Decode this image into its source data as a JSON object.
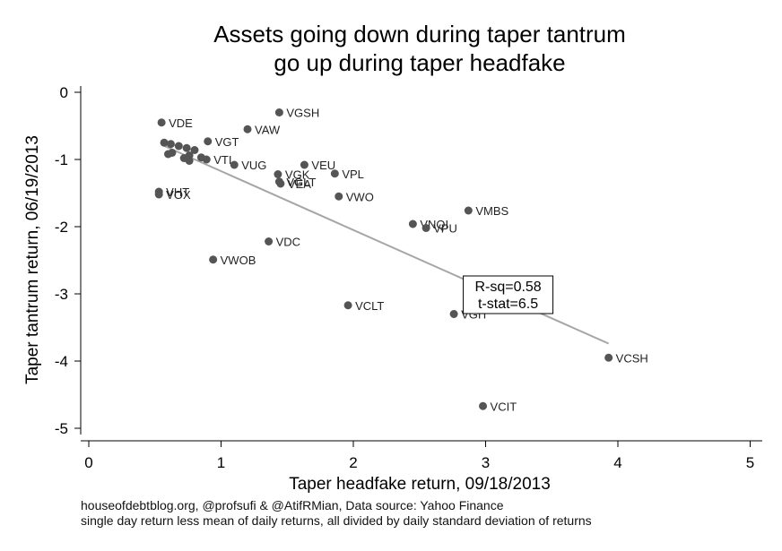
{
  "chart_data": {
    "type": "scatter",
    "title": [
      "Assets going down during taper tantrum",
      "go up during taper headfake"
    ],
    "xlabel": "Taper headfake return, 09/18/2013",
    "ylabel": "Taper tantrum return, 06/19/2013",
    "xlim": [
      0,
      5
    ],
    "ylim": [
      -5,
      0
    ],
    "xticks": [
      "0",
      "1",
      "2",
      "3",
      "4",
      "5"
    ],
    "yticks": [
      "0",
      "-1",
      "-2",
      "-3",
      "-4",
      "-5"
    ],
    "grid": false,
    "marker_color": "#555555",
    "fit_line_color": "#a6a6a6",
    "points": [
      {
        "label": "VDE",
        "x": 0.55,
        "y": -0.45
      },
      {
        "label": "VGSH",
        "x": 1.44,
        "y": -0.3
      },
      {
        "label": "VAW",
        "x": 1.2,
        "y": -0.55
      },
      {
        "label": "VGT",
        "x": 0.9,
        "y": -0.73
      },
      {
        "label": "",
        "x": 0.57,
        "y": -0.75
      },
      {
        "label": "",
        "x": 0.62,
        "y": -0.77
      },
      {
        "label": "",
        "x": 0.68,
        "y": -0.8
      },
      {
        "label": "",
        "x": 0.74,
        "y": -0.83
      },
      {
        "label": "",
        "x": 0.8,
        "y": -0.86
      },
      {
        "label": "",
        "x": 0.63,
        "y": -0.9
      },
      {
        "label": "",
        "x": 0.76,
        "y": -0.94
      },
      {
        "label": "",
        "x": 0.6,
        "y": -0.92
      },
      {
        "label": "",
        "x": 0.72,
        "y": -0.98
      },
      {
        "label": "",
        "x": 0.85,
        "y": -0.97
      },
      {
        "label": "VTI",
        "x": 0.89,
        "y": -1.0
      },
      {
        "label": "",
        "x": 0.76,
        "y": -1.02
      },
      {
        "label": "VUG",
        "x": 1.1,
        "y": -1.08
      },
      {
        "label": "VEU",
        "x": 1.63,
        "y": -1.08
      },
      {
        "label": "VPL",
        "x": 1.86,
        "y": -1.21
      },
      {
        "label": "VGK",
        "x": 1.43,
        "y": -1.22
      },
      {
        "label": "VGLT",
        "x": 1.44,
        "y": -1.33
      },
      {
        "label": "VEA",
        "x": 1.45,
        "y": -1.36
      },
      {
        "label": "VHT",
        "x": 0.53,
        "y": -1.48
      },
      {
        "label": "VOX",
        "x": 0.53,
        "y": -1.52
      },
      {
        "label": "VWO",
        "x": 1.89,
        "y": -1.55
      },
      {
        "label": "VMBS",
        "x": 2.87,
        "y": -1.76
      },
      {
        "label": "VNQI",
        "x": 2.45,
        "y": -1.96
      },
      {
        "label": "VPU",
        "x": 2.55,
        "y": -2.02
      },
      {
        "label": "VDC",
        "x": 1.36,
        "y": -2.22
      },
      {
        "label": "VWOB",
        "x": 0.94,
        "y": -2.49
      },
      {
        "label": "VCLT",
        "x": 1.96,
        "y": -3.17
      },
      {
        "label": "VGIT",
        "x": 2.76,
        "y": -3.3
      },
      {
        "label": "VCSH",
        "x": 3.93,
        "y": -3.95
      },
      {
        "label": "VCIT",
        "x": 2.98,
        "y": -4.67
      }
    ],
    "fit_line": {
      "x": [
        0.55,
        3.93
      ],
      "y": [
        -0.78,
        -3.74
      ]
    },
    "annotation": {
      "lines": [
        "R-sq=0.58",
        "t-stat=6.5"
      ],
      "x": 3.17,
      "y": -3.0
    }
  },
  "footer": {
    "line1": "houseofdebtblog.org, @profsufi & @AtifRMian, Data source: Yahoo Finance",
    "line2": "single day return less mean of daily returns, all divided by daily standard deviation of returns"
  }
}
